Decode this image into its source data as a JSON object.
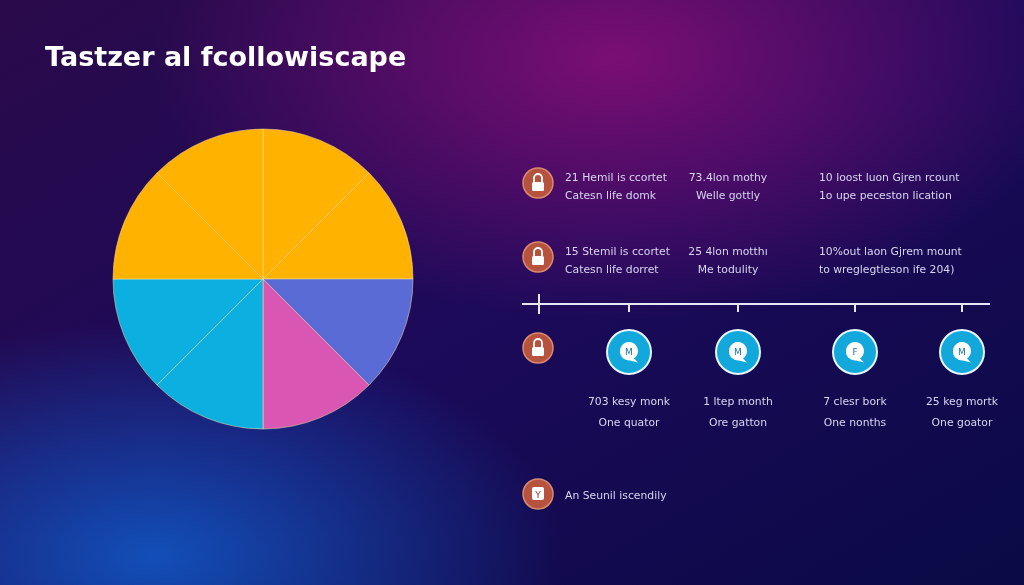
{
  "chart_data": {
    "type": "pie",
    "title": "Tastzer al fcollowiscape",
    "categories": [
      null,
      null,
      null,
      null,
      null,
      null,
      null,
      null
    ],
    "values": [
      12.5,
      12.5,
      12.5,
      12.5,
      12.5,
      12.5,
      12.5,
      12.5
    ],
    "colors": [
      "#ffb300",
      "#ffb300",
      "#5b6bd6",
      "#d957b3",
      "#0bb0e0",
      "#0bb0e0",
      "#ffb300",
      "#ffb300"
    ],
    "annotations": [
      "21 Hemil is ccortet",
      "Catesn life domk",
      "73.4lon mothy",
      "Welle gottly",
      "10 loost luon Gjren rcount",
      "1o upe peceston lication",
      "15 Stemil is ccortet",
      "Catesn life dorret",
      "25 4lon motthı",
      "Me todulity",
      "10%out laon Gjrem mount",
      "to wreglegtleson ife 204)",
      "M",
      "M",
      "F",
      "M",
      "703 kesy monk",
      "One quator",
      "1 ltep month",
      "Ore gatton",
      "7 clesr bork",
      "One nonths",
      "25 keg mortk",
      "One goator",
      "Y",
      "An Seunil iscendily"
    ]
  }
}
